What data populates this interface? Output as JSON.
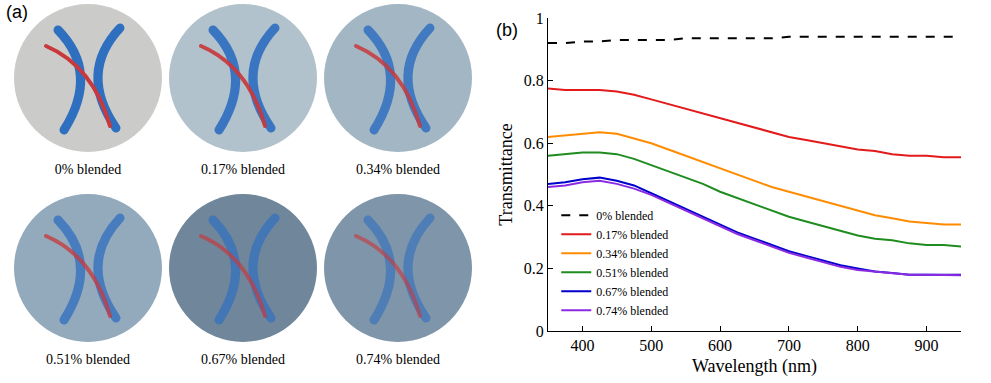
{
  "photos": {
    "panel_label": "(a)",
    "captions": [
      "0% blended",
      "0.17% blended",
      "0.34% blended",
      "0.51% blended",
      "0.67% blended",
      "0.74% blended"
    ]
  },
  "chart_data": {
    "type": "line",
    "panel_label": "(b)",
    "x_label": "Wavelength (nm)",
    "y_label": "Transmittance",
    "x": [
      350,
      375,
      400,
      425,
      450,
      475,
      500,
      525,
      550,
      575,
      600,
      625,
      650,
      675,
      700,
      725,
      750,
      775,
      800,
      825,
      850,
      875,
      900,
      925,
      950
    ],
    "series": [
      {
        "name": "0% blended",
        "color": "#000000",
        "line_style": "dash",
        "values": [
          0.92,
          0.92,
          0.925,
          0.925,
          0.93,
          0.93,
          0.93,
          0.93,
          0.935,
          0.935,
          0.935,
          0.935,
          0.935,
          0.935,
          0.94,
          0.94,
          0.94,
          0.94,
          0.94,
          0.94,
          0.94,
          0.94,
          0.94,
          0.94,
          0.94
        ]
      },
      {
        "name": "0.17% blended",
        "color": "#e31a1c",
        "line_style": "solid",
        "values": [
          0.775,
          0.77,
          0.77,
          0.77,
          0.765,
          0.755,
          0.74,
          0.725,
          0.71,
          0.695,
          0.68,
          0.665,
          0.65,
          0.635,
          0.62,
          0.61,
          0.6,
          0.59,
          0.58,
          0.575,
          0.565,
          0.56,
          0.56,
          0.555,
          0.555
        ]
      },
      {
        "name": "0.34% blended",
        "color": "#ff8c00",
        "line_style": "solid",
        "values": [
          0.62,
          0.625,
          0.63,
          0.635,
          0.63,
          0.615,
          0.6,
          0.58,
          0.56,
          0.54,
          0.52,
          0.5,
          0.48,
          0.46,
          0.445,
          0.43,
          0.415,
          0.4,
          0.385,
          0.37,
          0.36,
          0.35,
          0.345,
          0.34,
          0.34
        ]
      },
      {
        "name": "0.51% blended",
        "color": "#1e8c1e",
        "line_style": "solid",
        "values": [
          0.56,
          0.565,
          0.57,
          0.57,
          0.565,
          0.55,
          0.53,
          0.51,
          0.49,
          0.47,
          0.445,
          0.425,
          0.405,
          0.385,
          0.365,
          0.35,
          0.335,
          0.32,
          0.305,
          0.295,
          0.29,
          0.28,
          0.275,
          0.275,
          0.27
        ]
      },
      {
        "name": "0.67% blended",
        "color": "#0000cc",
        "line_style": "solid",
        "values": [
          0.47,
          0.475,
          0.485,
          0.49,
          0.48,
          0.465,
          0.44,
          0.415,
          0.39,
          0.365,
          0.34,
          0.315,
          0.295,
          0.275,
          0.255,
          0.24,
          0.225,
          0.21,
          0.2,
          0.19,
          0.185,
          0.18,
          0.18,
          0.18,
          0.18
        ]
      },
      {
        "name": "0.74% blended",
        "color": "#8a2be2",
        "line_style": "solid",
        "values": [
          0.46,
          0.465,
          0.475,
          0.48,
          0.47,
          0.455,
          0.435,
          0.41,
          0.385,
          0.36,
          0.335,
          0.31,
          0.29,
          0.27,
          0.25,
          0.235,
          0.22,
          0.205,
          0.195,
          0.19,
          0.185,
          0.18,
          0.18,
          0.178,
          0.178
        ]
      }
    ],
    "xlim": [
      350,
      950
    ],
    "xticks": [
      400,
      500,
      600,
      700,
      800,
      900
    ],
    "ylim": [
      0,
      1
    ],
    "yticks": [
      0,
      0.2,
      0.4,
      0.6,
      0.8,
      1
    ],
    "grid": false,
    "legend": "lower left"
  }
}
